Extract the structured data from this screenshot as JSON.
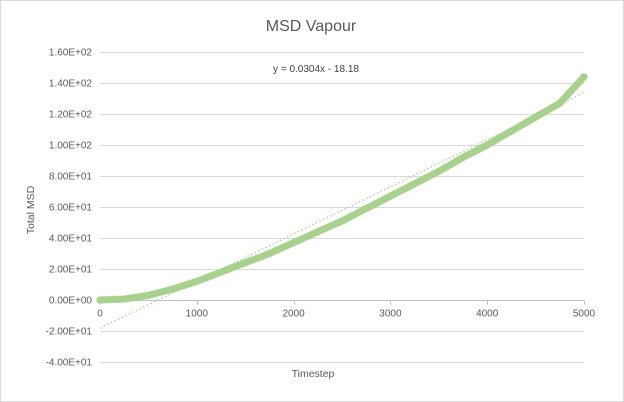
{
  "chart_data": {
    "type": "scatter",
    "title": "MSD Vapour",
    "xlabel": "Timestep",
    "ylabel": "Total MSD",
    "xlim": [
      0,
      5000
    ],
    "ylim": [
      -40,
      160
    ],
    "xticks": [
      0,
      1000,
      2000,
      3000,
      4000,
      5000
    ],
    "xtick_labels": [
      "0",
      "1000",
      "2000",
      "3000",
      "4000",
      "5000"
    ],
    "yticks": [
      -40,
      -20,
      0,
      20,
      40,
      60,
      80,
      100,
      120,
      140,
      160
    ],
    "ytick_labels": [
      "-4.00E+01",
      "-2.00E+01",
      "0.00E+00",
      "2.00E+01",
      "4.00E+01",
      "6.00E+01",
      "8.00E+01",
      "1.00E+02",
      "1.20E+02",
      "1.40E+02",
      "1.60E+02"
    ],
    "grid": true,
    "legend": "none",
    "series": [
      {
        "x": [
          0,
          250,
          500,
          750,
          1000,
          1250,
          1500,
          1750,
          2000,
          2250,
          2500,
          2750,
          3000,
          3250,
          3500,
          3750,
          4000,
          4250,
          4500,
          4750,
          5000
        ],
        "y": [
          0,
          0.6,
          3,
          7,
          12,
          18,
          24,
          30,
          37,
          44,
          51,
          59,
          67,
          75,
          83,
          92,
          100,
          109,
          118,
          127,
          144
        ]
      }
    ],
    "trendline": {
      "type": "linear",
      "equation": "y = 0.0304x - 18.18",
      "slope": 0.0304,
      "intercept": -18.18,
      "x_range": [
        0,
        5000
      ]
    },
    "colors": {
      "series": "#a9d18e",
      "trendline": "#a9d18e",
      "grid": "#d9d9d9",
      "axis": "#bfbfbf"
    }
  }
}
